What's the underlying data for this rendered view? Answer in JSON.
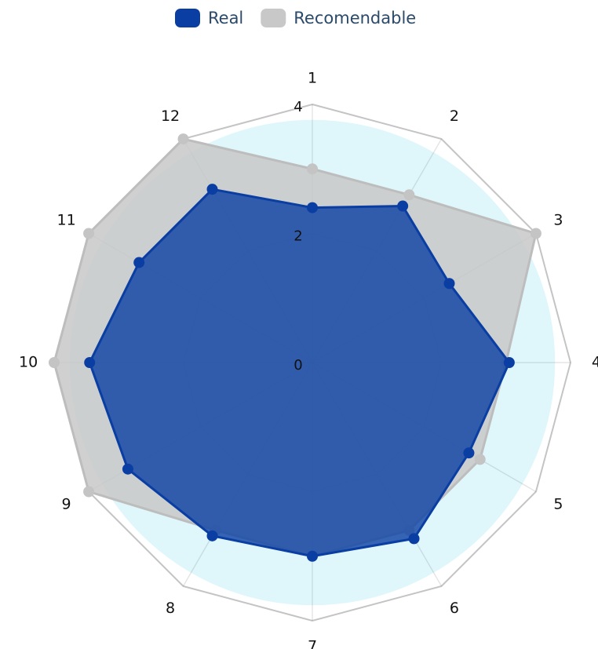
{
  "chart_data": {
    "type": "radar",
    "categories": [
      "1",
      "2",
      "3",
      "4",
      "5",
      "6",
      "7",
      "8",
      "9",
      "10",
      "11",
      "12"
    ],
    "series": [
      {
        "name": "Real",
        "color": "#0a3ea3",
        "values": [
          2.4,
          2.8,
          2.45,
          3.05,
          2.8,
          3.15,
          3.0,
          3.1,
          3.3,
          3.45,
          3.1,
          3.1
        ]
      },
      {
        "name": "Recomendable",
        "color": "#c8c8c8",
        "values": [
          3,
          3,
          4,
          3,
          3,
          3,
          3,
          3,
          4,
          4,
          4,
          4
        ]
      }
    ],
    "ylim": [
      0,
      4
    ],
    "yticks": [
      0,
      2,
      4
    ],
    "grid": true,
    "legend": "top"
  }
}
